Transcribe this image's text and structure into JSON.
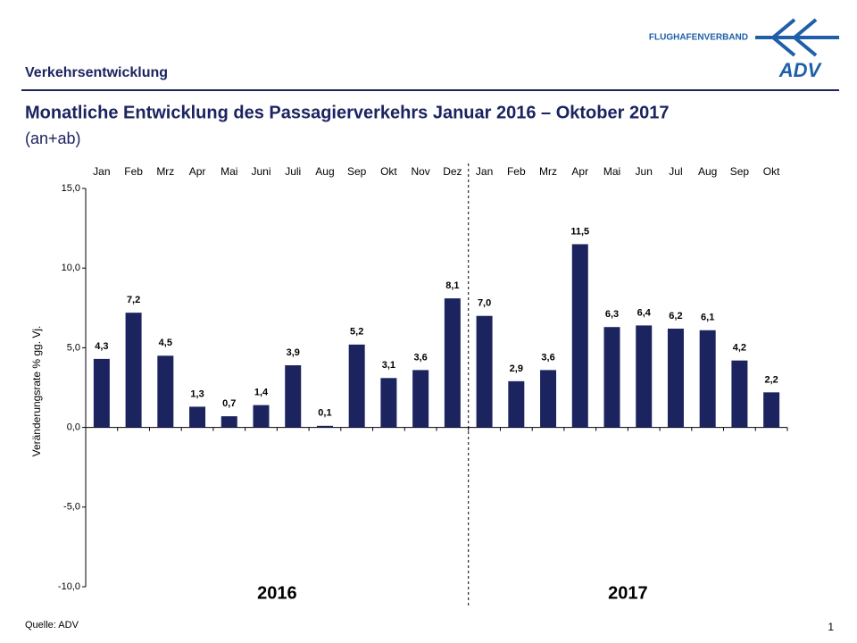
{
  "header": {
    "section": "Verkehrsentwicklung",
    "logo_text": "FLUGHAFENVERBAND",
    "logo_mark": "ADV"
  },
  "chart_data": {
    "type": "bar",
    "title": "Monatliche Entwicklung des Passagierverkehrs  Januar 2016 – Oktober 2017",
    "subtitle": "(an+ab)",
    "y_label": "Veränderungsrate % gg. Vj.",
    "categories": [
      "Jan",
      "Feb",
      "Mrz",
      "Apr",
      "Mai",
      "Juni",
      "Juli",
      "Aug",
      "Sep",
      "Okt",
      "Nov",
      "Dez",
      "Jan",
      "Feb",
      "Mrz",
      "Apr",
      "Mai",
      "Jun",
      "Jul",
      "Aug",
      "Sep",
      "Okt"
    ],
    "values": [
      4.3,
      7.2,
      4.5,
      1.3,
      0.7,
      1.4,
      3.9,
      0.1,
      5.2,
      3.1,
      3.6,
      8.1,
      7.0,
      2.9,
      3.6,
      11.5,
      6.3,
      6.4,
      6.2,
      6.1,
      4.2,
      2.2
    ],
    "value_labels": [
      "4,3",
      "7,2",
      "4,5",
      "1,3",
      "0,7",
      "1,4",
      "3,9",
      "0,1",
      "5,2",
      "3,1",
      "3,6",
      "8,1",
      "7,0",
      "2,9",
      "3,6",
      "11,5",
      "6,3",
      "6,4",
      "6,2",
      "6,1",
      "4,2",
      "2,2"
    ],
    "color": "#1c2460",
    "ylim": [
      -10,
      15
    ],
    "yticks": [
      {
        "value": -10,
        "label": "-10,0"
      },
      {
        "value": -5,
        "label": "-5,0"
      },
      {
        "value": 0,
        "label": "0,0"
      },
      {
        "value": 5,
        "label": "5,0"
      },
      {
        "value": 10,
        "label": "10,0"
      },
      {
        "value": 15,
        "label": "15,0"
      }
    ],
    "annotations": [
      "2016",
      "2017"
    ]
  },
  "footer": {
    "source": "Quelle: ADV",
    "page": "1"
  }
}
